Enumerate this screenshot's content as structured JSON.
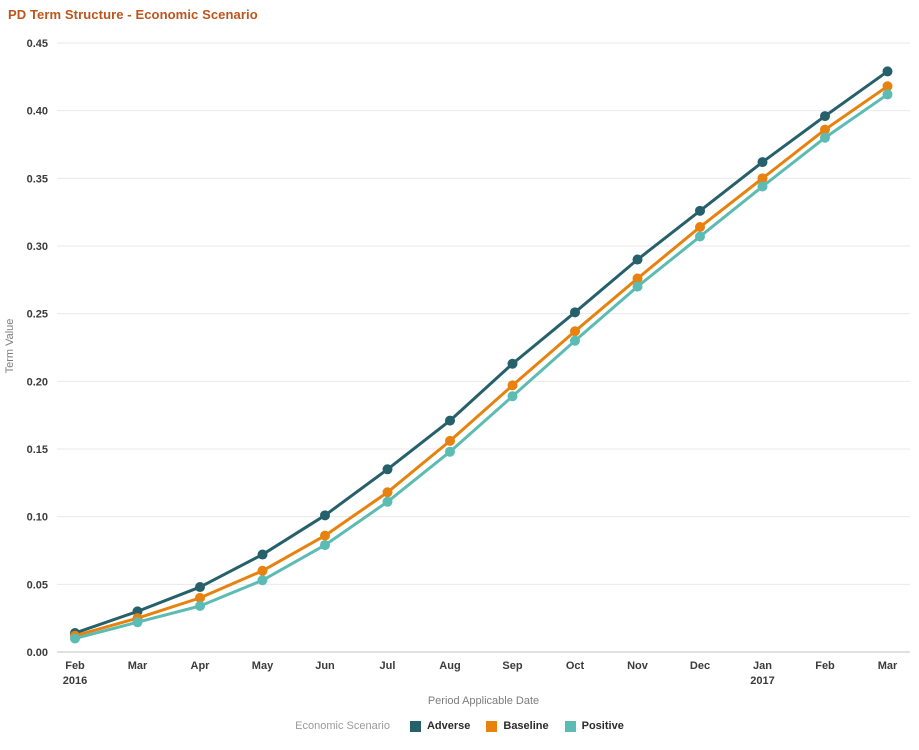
{
  "chart_data": {
    "type": "line",
    "title": "PD Term Structure - Economic Scenario",
    "xlabel": "Period Applicable Date",
    "ylabel": "Term Value",
    "legend_title": "Economic Scenario",
    "legend_position": "bottom",
    "grid": true,
    "ylim": [
      0,
      0.45
    ],
    "y_tick_step": 0.05,
    "y_ticks": [
      "0.00",
      "0.05",
      "0.10",
      "0.15",
      "0.20",
      "0.25",
      "0.30",
      "0.35",
      "0.40",
      "0.45"
    ],
    "categories": [
      "Feb",
      "Mar",
      "Apr",
      "May",
      "Jun",
      "Jul",
      "Aug",
      "Sep",
      "Oct",
      "Nov",
      "Dec",
      "Jan",
      "Feb",
      "Mar"
    ],
    "category_sublabels": [
      "2016",
      "",
      "",
      "",
      "",
      "",
      "",
      "",
      "",
      "",
      "",
      "2017",
      "",
      ""
    ],
    "series": [
      {
        "name": "Adverse",
        "color": "#26606b",
        "values": [
          0.014,
          0.03,
          0.048,
          0.072,
          0.101,
          0.135,
          0.171,
          0.213,
          0.251,
          0.29,
          0.326,
          0.362,
          0.396,
          0.429
        ]
      },
      {
        "name": "Baseline",
        "color": "#e8820e",
        "values": [
          0.012,
          0.025,
          0.04,
          0.06,
          0.086,
          0.118,
          0.156,
          0.197,
          0.237,
          0.276,
          0.314,
          0.35,
          0.386,
          0.418
        ]
      },
      {
        "name": "Positive",
        "color": "#5cbcb4",
        "values": [
          0.01,
          0.022,
          0.034,
          0.053,
          0.079,
          0.111,
          0.148,
          0.189,
          0.23,
          0.27,
          0.307,
          0.344,
          0.38,
          0.412
        ]
      }
    ],
    "colors": {
      "title": "#bd541c",
      "gridline": "#e9e9e9",
      "axis_line": "#c2c2c2",
      "tick_label": "#3b3b3b",
      "axis_title": "#7d7d7d",
      "legend_title": "#9b9b9b"
    }
  }
}
